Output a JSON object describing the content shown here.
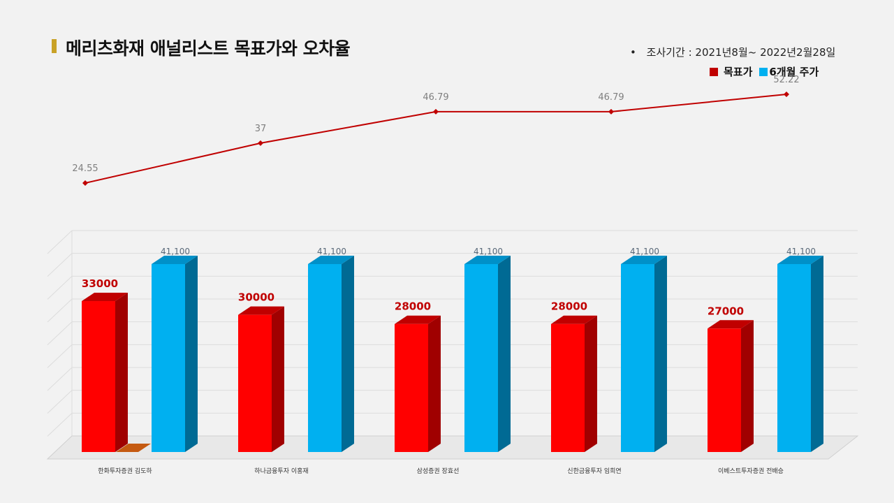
{
  "title": "메리츠화재 애널리스트 목표가와 오차율",
  "period": {
    "bullet": "•",
    "text": "조사기간 : 2021년8월~ 2022년2월28일"
  },
  "legend": [
    {
      "name": "목표가",
      "color": "#e00000"
    },
    {
      "name": "6개월 주가",
      "color": "#00b0f0"
    }
  ],
  "chart_data": {
    "type": "bar",
    "categories": [
      "한화투자증권 김도하",
      "하나금융투자 이홍재",
      "삼성증권 장효선",
      "신한금융투자 임희연",
      "이베스트투자증권 전배승"
    ],
    "series": [
      {
        "name": "목표가",
        "values": [
          33000,
          30000,
          28000,
          28000,
          27000
        ],
        "labels": [
          "33000",
          "30000",
          "28000",
          "28000",
          "27000"
        ],
        "color": "#ff0000"
      },
      {
        "name": "6개월 주가",
        "values": [
          41100,
          41100,
          41100,
          41100,
          41100
        ],
        "labels": [
          "41,100",
          "41,100",
          "41,100",
          "41,100",
          "41,100"
        ],
        "color": "#00b0f0"
      }
    ],
    "error_rate": {
      "type": "line",
      "values": [
        24.55,
        37,
        46.79,
        46.79,
        52.22
      ],
      "labels": [
        "24.55",
        "37",
        "46.79",
        "46.79",
        "52.22"
      ],
      "color": "#c00000"
    },
    "ylim": [
      0,
      45000
    ],
    "grid": true
  }
}
